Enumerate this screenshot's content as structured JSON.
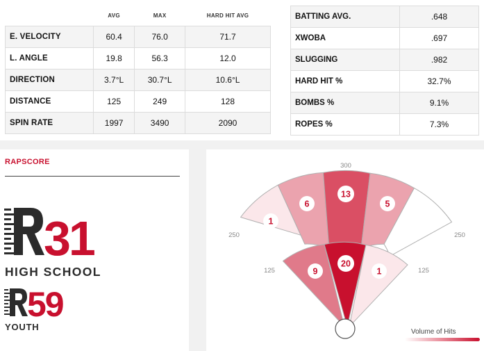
{
  "metrics": {
    "columns": [
      "AVG",
      "MAX",
      "HARD HIT AVG"
    ],
    "rows": [
      {
        "label": "E. VELOCITY",
        "avg": "60.4",
        "max": "76.0",
        "hard_hit_avg": "71.7"
      },
      {
        "label": "L. ANGLE",
        "avg": "19.8",
        "max": "56.3",
        "hard_hit_avg": "12.0"
      },
      {
        "label": "DIRECTION",
        "avg": "3.7°L",
        "max": "30.7°L",
        "hard_hit_avg": "10.6°L"
      },
      {
        "label": "DISTANCE",
        "avg": "125",
        "max": "249",
        "hard_hit_avg": "128"
      },
      {
        "label": "SPIN RATE",
        "avg": "1997",
        "max": "3490",
        "hard_hit_avg": "2090"
      }
    ]
  },
  "batting": {
    "rows": [
      {
        "label": "BATTING AVG.",
        "value": ".648"
      },
      {
        "label": "XWOBA",
        "value": ".697"
      },
      {
        "label": "SLUGGING",
        "value": ".982"
      },
      {
        "label": "HARD HIT %",
        "value": "32.7%"
      },
      {
        "label": "BOMBS %",
        "value": "9.1%"
      },
      {
        "label": "ROPES %",
        "value": "7.3%"
      }
    ]
  },
  "rapscore": {
    "title": "RAPSCORE",
    "high_school": {
      "score": "31",
      "label": "HIGH SCHOOL"
    },
    "youth": {
      "score": "59",
      "label": "YOUTH"
    },
    "brand_color": "#c8102e",
    "icon": "r-logo-icon"
  },
  "spray_chart": {
    "distance_labels": {
      "outer_top": "300",
      "outer_left": "250",
      "outer_right": "250",
      "inner_left": "125",
      "inner_right": "125"
    },
    "zones": {
      "outer_left": {
        "count": "1",
        "fill": "#fbe7ea",
        "text_color": "#c8102e"
      },
      "outer_center_left": {
        "count": "6",
        "fill": "#eba3ae",
        "text_color": "#c8102e"
      },
      "outer_center": {
        "count": "13",
        "fill": "#da4f64",
        "text_color": "#c8102e"
      },
      "outer_center_right": {
        "count": "5",
        "fill": "#eba3ae",
        "text_color": "#c8102e"
      },
      "outer_right": {
        "count": "",
        "fill": "#ffffff"
      },
      "inner_left": {
        "count": "9",
        "fill": "#e07a8a",
        "text_color": "#c8102e"
      },
      "inner_center": {
        "count": "20",
        "fill": "#c8102e",
        "text_color": "#c8102e"
      },
      "inner_right": {
        "count": "1",
        "fill": "#fbe7ea",
        "text_color": "#c8102e"
      }
    },
    "legend_label": "Volume of Hits"
  }
}
